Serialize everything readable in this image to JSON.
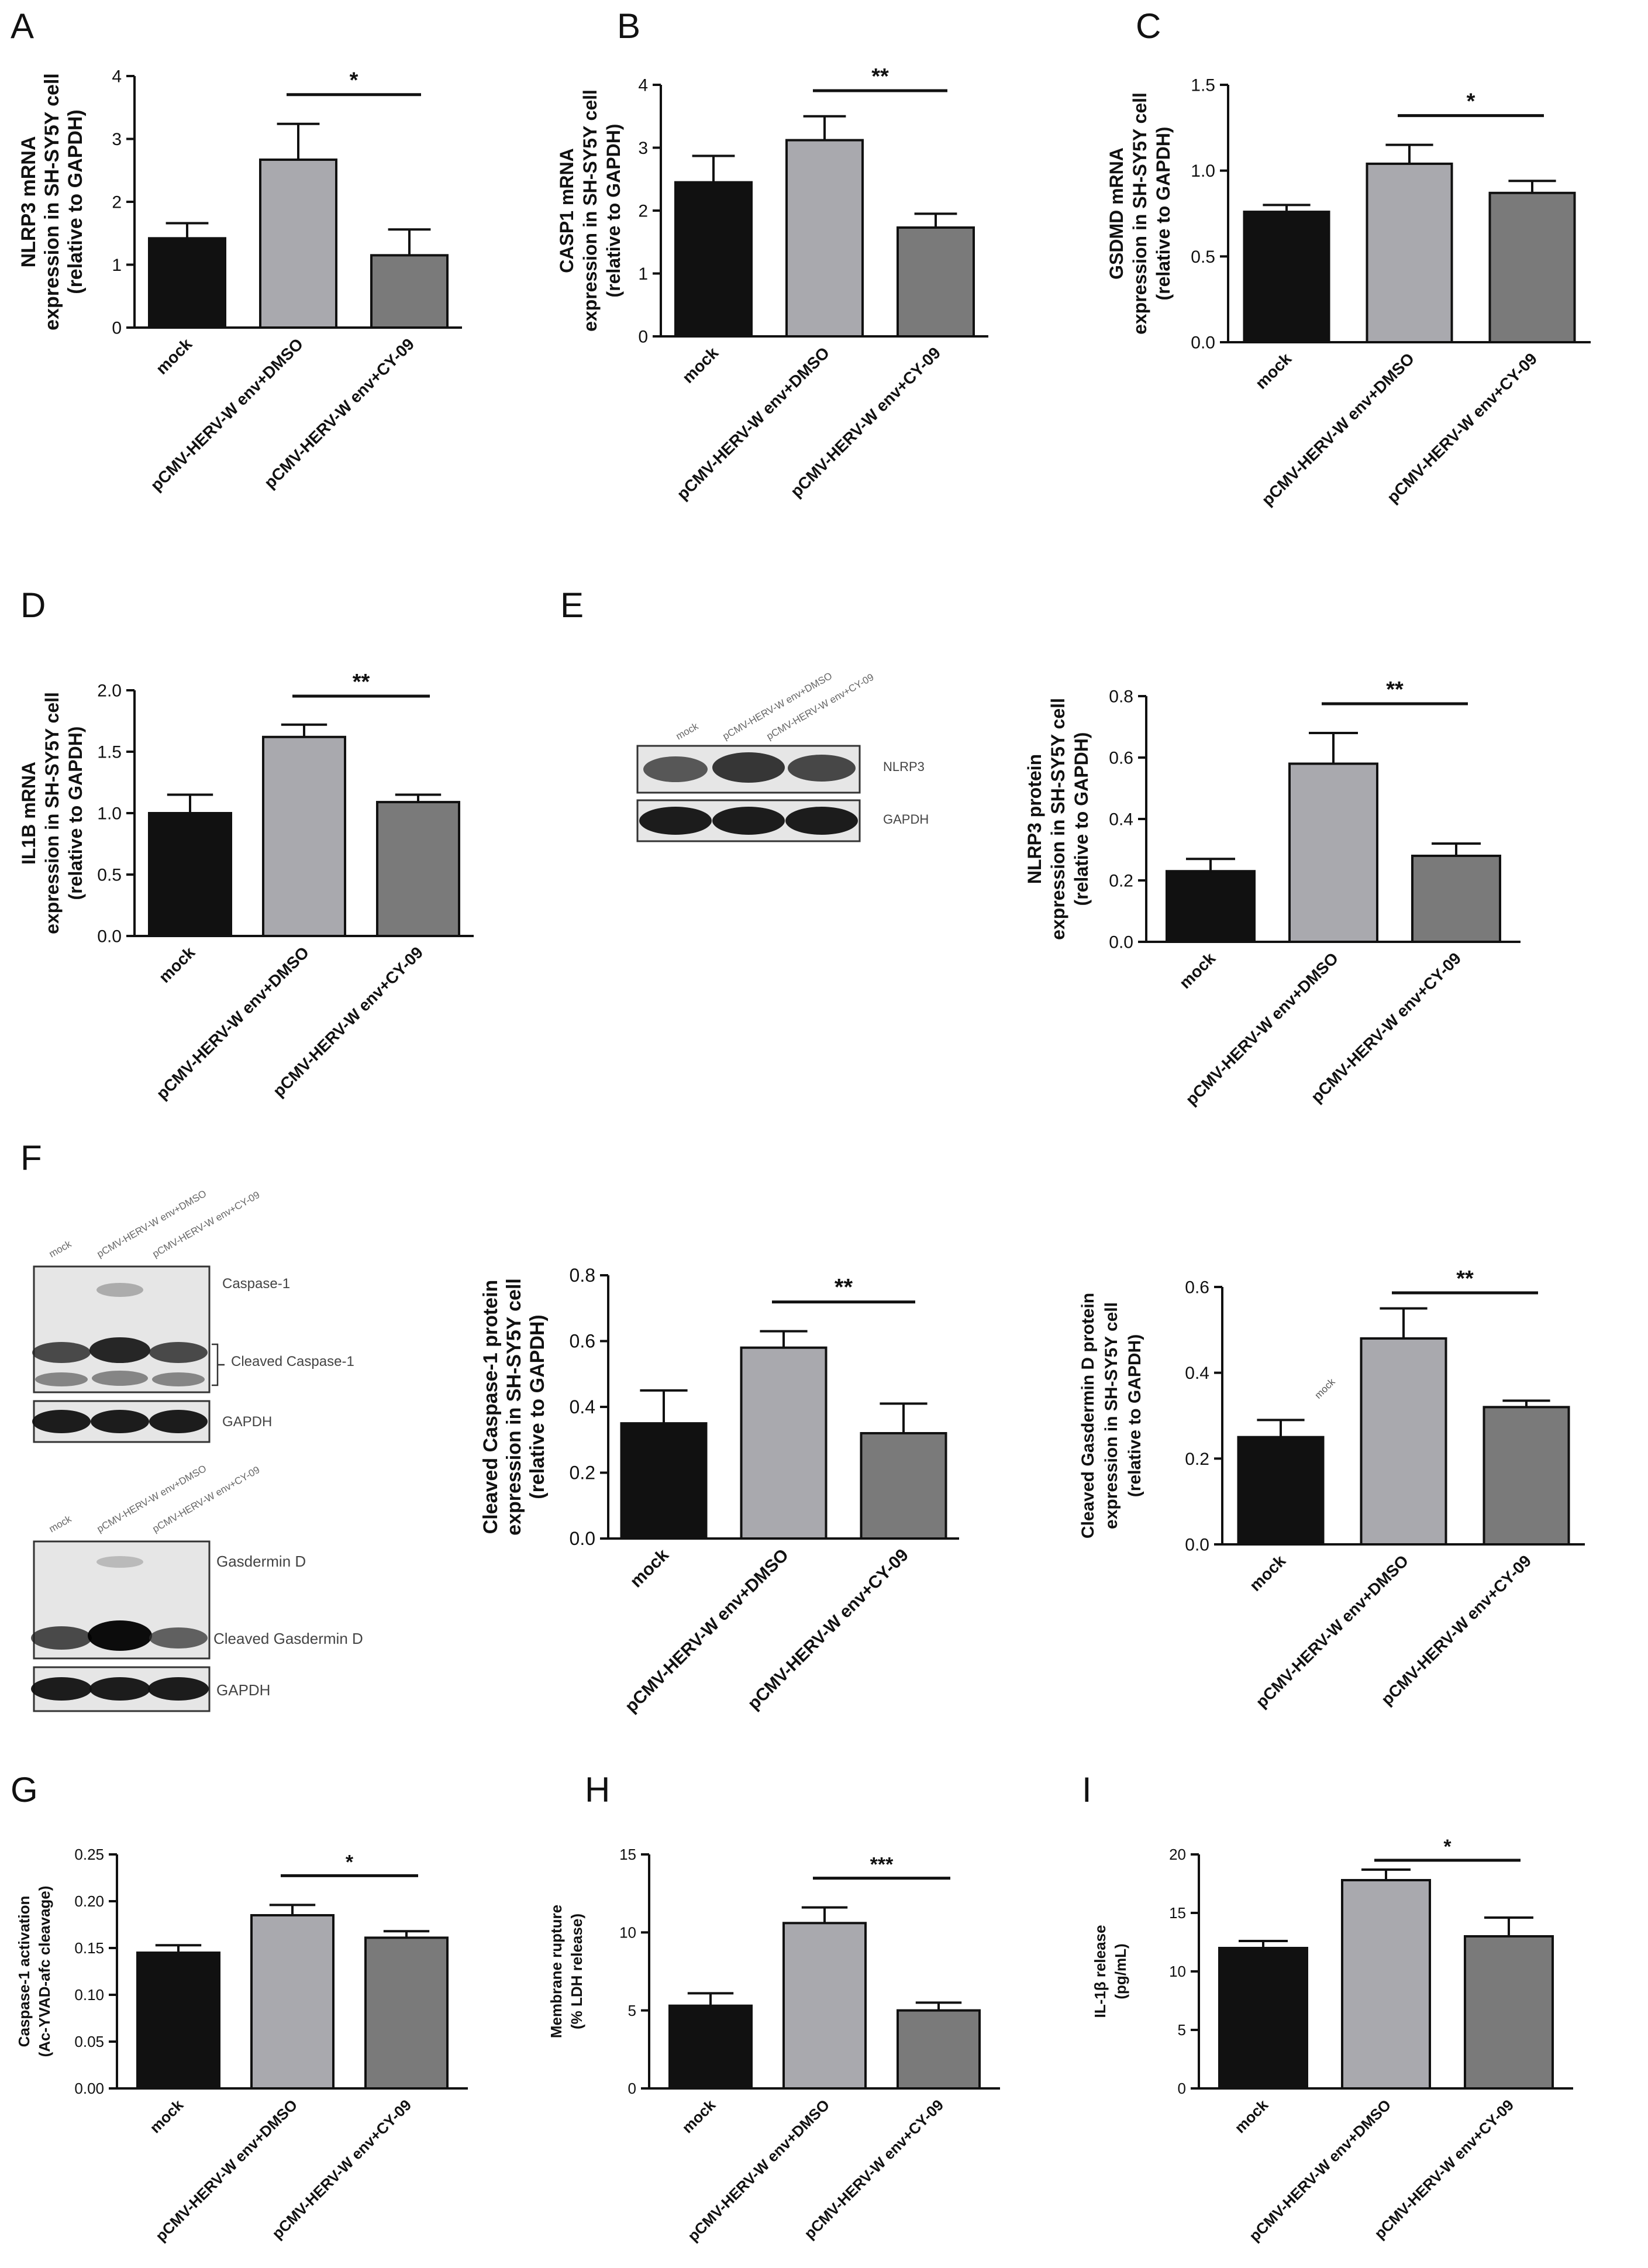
{
  "panel_labels": [
    "A",
    "B",
    "C",
    "D",
    "E",
    "F",
    "G",
    "H",
    "I"
  ],
  "blots": {
    "E": {
      "lanes": [
        "mock",
        "pCMV-HERV-W env+DMSO",
        "pCMV-HERV-W env+CY-09"
      ],
      "bands": [
        "NLRP3",
        "GAPDH"
      ]
    },
    "F1": {
      "lanes": [
        "mock",
        "pCMV-HERV-W env+DMSO",
        "pCMV-HERV-W env+CY-09"
      ],
      "bands": [
        "Caspase-1",
        "Cleaved Caspase-1",
        "GAPDH"
      ]
    },
    "F2": {
      "lanes": [
        "mock",
        "pCMV-HERV-W env+DMSO",
        "pCMV-HERV-W env+CY-09"
      ],
      "bands": [
        "Gasdermin D",
        "Cleaved Gasdermin D",
        "GAPDH"
      ]
    }
  },
  "chart_data": [
    {
      "id": "A",
      "type": "bar",
      "categories": [
        "mock",
        "pCMV-HERV-W env+DMSO",
        "pCMV-HERV-W env+CY-09"
      ],
      "values": [
        1.42,
        2.67,
        1.15
      ],
      "errors": [
        0.24,
        0.57,
        0.41
      ],
      "ylim": [
        0,
        4
      ],
      "ticks": [
        0,
        1,
        2,
        3,
        4
      ],
      "ylabel": [
        "NLRP3 mRNA",
        "expression in SH-SY5Y cell",
        "(relative to GAPDH)"
      ],
      "sig": "*",
      "sig_pair": [
        1,
        2
      ],
      "colors": [
        "#111111",
        "#a9a9ae",
        "#7a7a7a"
      ]
    },
    {
      "id": "B",
      "type": "bar",
      "categories": [
        "mock",
        "pCMV-HERV-W env+DMSO",
        "pCMV-HERV-W env+CY-09"
      ],
      "values": [
        2.45,
        3.12,
        1.73
      ],
      "errors": [
        0.42,
        0.38,
        0.22
      ],
      "ylim": [
        0,
        4
      ],
      "ticks": [
        0,
        1,
        2,
        3,
        4
      ],
      "ylabel": [
        "CASP1 mRNA",
        "expression in SH-SY5Y cell",
        "(relative to GAPDH)"
      ],
      "sig": "**",
      "sig_pair": [
        1,
        2
      ],
      "colors": [
        "#111111",
        "#a9a9ae",
        "#7a7a7a"
      ]
    },
    {
      "id": "C",
      "type": "bar",
      "categories": [
        "mock",
        "pCMV-HERV-W env+DMSO",
        "pCMV-HERV-W env+CY-09"
      ],
      "values": [
        0.76,
        1.04,
        0.87
      ],
      "errors": [
        0.04,
        0.11,
        0.07
      ],
      "ylim": [
        0,
        1.5
      ],
      "ticks": [
        "0.0",
        "0.5",
        "1.0",
        "1.5"
      ],
      "ylabel": [
        "GSDMD mRNA",
        "expression in SH-SY5Y cell",
        "(relative to GAPDH)"
      ],
      "sig": "*",
      "sig_pair": [
        1,
        2
      ],
      "colors": [
        "#111111",
        "#a9a9ae",
        "#7a7a7a"
      ]
    },
    {
      "id": "D",
      "type": "bar",
      "categories": [
        "mock",
        "pCMV-HERV-W env+DMSO",
        "pCMV-HERV-W env+CY-09"
      ],
      "values": [
        1.0,
        1.62,
        1.09
      ],
      "errors": [
        0.15,
        0.1,
        0.06
      ],
      "ylim": [
        0,
        2
      ],
      "ticks": [
        "0.0",
        "0.5",
        "1.0",
        "1.5",
        "2.0"
      ],
      "ylabel": [
        "IL1B mRNA",
        "expression in SH-SY5Y cell",
        "(relative to GAPDH)"
      ],
      "sig": "**",
      "sig_pair": [
        1,
        2
      ],
      "colors": [
        "#111111",
        "#a9a9ae",
        "#7a7a7a"
      ]
    },
    {
      "id": "E",
      "type": "bar",
      "categories": [
        "mock",
        "pCMV-HERV-W env+DMSO",
        "pCMV-HERV-W env+CY-09"
      ],
      "values": [
        0.23,
        0.58,
        0.28
      ],
      "errors": [
        0.04,
        0.1,
        0.04
      ],
      "ylim": [
        0,
        0.8
      ],
      "ticks": [
        "0.0",
        "0.2",
        "0.4",
        "0.6",
        "0.8"
      ],
      "ylabel": [
        "NLRP3 protein",
        "expression in SH-SY5Y cell",
        "(relative to GAPDH)"
      ],
      "sig": "**",
      "sig_pair": [
        1,
        2
      ],
      "colors": [
        "#111111",
        "#a9a9ae",
        "#7a7a7a"
      ]
    },
    {
      "id": "F1",
      "type": "bar",
      "categories": [
        "mock",
        "pCMV-HERV-W env+DMSO",
        "pCMV-HERV-W env+CY-09"
      ],
      "values": [
        0.35,
        0.58,
        0.32
      ],
      "errors": [
        0.1,
        0.05,
        0.09
      ],
      "ylim": [
        0,
        0.8
      ],
      "ticks": [
        "0.0",
        "0.2",
        "0.4",
        "0.6",
        "0.8"
      ],
      "ylabel": [
        "Cleaved Caspase-1 protein",
        "expression in SH-SY5Y cell",
        "(relative to GAPDH)"
      ],
      "sig": "**",
      "sig_pair": [
        1,
        2
      ],
      "colors": [
        "#111111",
        "#a9a9ae",
        "#7a7a7a"
      ]
    },
    {
      "id": "F2",
      "type": "bar",
      "categories": [
        "mock",
        "pCMV-HERV-W env+DMSO",
        "pCMV-HERV-W env+CY-09"
      ],
      "values": [
        0.25,
        0.48,
        0.32
      ],
      "errors": [
        0.04,
        0.07,
        0.015
      ],
      "ylim": [
        0,
        0.6
      ],
      "ticks": [
        "0.0",
        "0.2",
        "0.4",
        "0.6"
      ],
      "ylabel": [
        "Cleaved Gasdermin D protein",
        "expression in SH-SY5Y cell",
        "(relative to GAPDH)"
      ],
      "sig": "**",
      "sig_pair": [
        1,
        2
      ],
      "colors": [
        "#111111",
        "#a9a9ae",
        "#7a7a7a"
      ]
    },
    {
      "id": "G",
      "type": "bar",
      "categories": [
        "mock",
        "pCMV-HERV-W env+DMSO",
        "pCMV-HERV-W env+CY-09"
      ],
      "values": [
        0.145,
        0.185,
        0.161
      ],
      "errors": [
        0.008,
        0.011,
        0.007
      ],
      "ylim": [
        0,
        0.25
      ],
      "ticks": [
        "0.00",
        "0.05",
        "0.10",
        "0.15",
        "0.20",
        "0.25"
      ],
      "ylabel": [
        "Caspase-1 activation",
        "(Ac-YVAD-afc cleavage)"
      ],
      "sig": "*",
      "sig_pair": [
        1,
        2
      ],
      "colors": [
        "#111111",
        "#a9a9ae",
        "#7a7a7a"
      ]
    },
    {
      "id": "H",
      "type": "bar",
      "categories": [
        "mock",
        "pCMV-HERV-W env+DMSO",
        "pCMV-HERV-W env+CY-09"
      ],
      "values": [
        5.3,
        10.6,
        5.0
      ],
      "errors": [
        0.8,
        1.0,
        0.5
      ],
      "ylim": [
        0,
        15
      ],
      "ticks": [
        "0",
        "5",
        "10",
        "15"
      ],
      "ylabel": [
        "Membrane rupture",
        "(% LDH release)"
      ],
      "sig": "***",
      "sig_pair": [
        1,
        2
      ],
      "colors": [
        "#111111",
        "#a9a9ae",
        "#7a7a7a"
      ]
    },
    {
      "id": "I",
      "type": "bar",
      "categories": [
        "mock",
        "pCMV-HERV-W env+DMSO",
        "pCMV-HERV-W env+CY-09"
      ],
      "values": [
        12.0,
        17.8,
        13.0
      ],
      "errors": [
        0.6,
        0.9,
        1.6
      ],
      "ylim": [
        0,
        20
      ],
      "ticks": [
        "0",
        "5",
        "10",
        "15",
        "20"
      ],
      "ylabel": [
        "IL-1β release",
        "(pg/mL)"
      ],
      "sig": "*",
      "sig_pair": [
        1,
        2
      ],
      "colors": [
        "#111111",
        "#a9a9ae",
        "#7a7a7a"
      ]
    }
  ]
}
